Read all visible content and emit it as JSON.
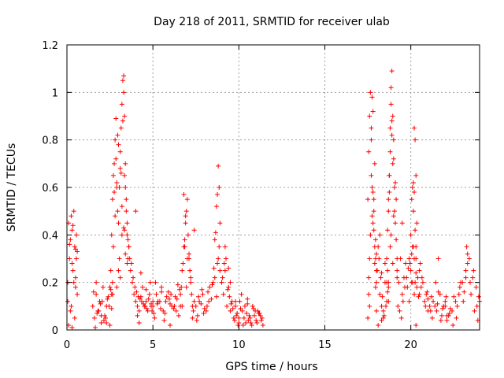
{
  "chart_data": {
    "type": "scatter",
    "title": "Day 218 of 2011, SRMTID for receiver ulab",
    "xlabel": "GPS time / hours",
    "ylabel": "SRMTID / TECUs",
    "xlim": [
      0,
      24
    ],
    "ylim": [
      0,
      1.2
    ],
    "x_ticks": [
      0,
      5,
      10,
      15,
      20
    ],
    "x_tick_labels": [
      "0",
      "5",
      "10",
      "15",
      "20"
    ],
    "y_ticks": [
      0,
      0.2,
      0.4,
      0.6,
      0.8,
      1.0,
      1.2
    ],
    "y_tick_labels": [
      "0",
      "0.2",
      "0.4",
      "0.6",
      "0.8",
      "1",
      "1.2"
    ],
    "grid": true,
    "marker": "+",
    "marker_color": "#ff0000",
    "series": [
      {
        "name": "SRMTID",
        "x": [
          0.05,
          0.1,
          0.15,
          0.2,
          0.25,
          0.3,
          0.35,
          0.4,
          0.45,
          0.5,
          0.55,
          0.6,
          0.1,
          0.2,
          0.3,
          0.4,
          0.5,
          0.6,
          0.15,
          0.35,
          0.45,
          0.55,
          0.05,
          0.25,
          0.5,
          0.3,
          1.5,
          1.6,
          1.7,
          1.8,
          1.9,
          2.0,
          2.1,
          2.2,
          2.3,
          2.4,
          2.5,
          2.6,
          1.55,
          1.75,
          1.95,
          2.15,
          2.35,
          2.55,
          1.65,
          1.85,
          2.05,
          2.25,
          2.45,
          2.65,
          1.7,
          2.0,
          2.3,
          2.5,
          2.55,
          2.6,
          2.65,
          2.7,
          2.75,
          2.8,
          2.85,
          2.9,
          2.95,
          3.0,
          3.05,
          3.1,
          3.15,
          3.2,
          3.25,
          3.3,
          3.35,
          3.4,
          3.45,
          3.5,
          3.55,
          3.6,
          2.7,
          2.8,
          2.9,
          3.0,
          3.1,
          3.2,
          3.3,
          3.4,
          3.5,
          2.75,
          2.95,
          3.15,
          3.35,
          3.55,
          2.65,
          3.05,
          3.25,
          3.45,
          3.3,
          3.35,
          3.2,
          2.9,
          3.0,
          3.1,
          3.4,
          3.5,
          2.85,
          2.6,
          3.6,
          3.7,
          3.8,
          3.9,
          4.0,
          4.1,
          4.2,
          4.3,
          4.4,
          4.5,
          4.6,
          4.7,
          4.8,
          4.9,
          5.0,
          3.65,
          3.85,
          4.05,
          4.25,
          4.45,
          4.65,
          4.85,
          5.05,
          3.75,
          3.95,
          4.15,
          4.35,
          4.55,
          4.75,
          4.95,
          4.0,
          4.3,
          4.6,
          4.9,
          4.1,
          4.2,
          5.0,
          5.2,
          5.4,
          5.6,
          5.8,
          6.0,
          6.2,
          6.4,
          6.6,
          5.1,
          5.3,
          5.5,
          5.7,
          5.9,
          6.1,
          6.3,
          6.5,
          5.15,
          5.45,
          5.75,
          6.05,
          6.35,
          6.55,
          5.25,
          5.65,
          5.95,
          6.25,
          6.45,
          5.5,
          6.0,
          6.6,
          6.7,
          6.8,
          6.9,
          7.0,
          7.1,
          7.2,
          7.3,
          7.4,
          6.65,
          6.75,
          6.85,
          6.95,
          7.05,
          7.15,
          7.25,
          7.35,
          6.8,
          6.85,
          6.9,
          7.0,
          7.2,
          7.3,
          6.7,
          7.1,
          7.4,
          6.95,
          7.5,
          7.7,
          7.9,
          8.1,
          8.3,
          8.5,
          8.7,
          8.9,
          7.6,
          7.8,
          8.0,
          8.2,
          8.4,
          8.6,
          8.8,
          7.55,
          7.85,
          8.15,
          8.45,
          8.75,
          7.65,
          7.95,
          8.25,
          8.55,
          8.85,
          8.65,
          8.7,
          8.75,
          8.8,
          8.85,
          8.9,
          9.0,
          8.6,
          9.0,
          9.1,
          9.2,
          9.3,
          9.4,
          9.5,
          9.6,
          9.7,
          9.8,
          9.9,
          10.0,
          9.05,
          9.25,
          9.45,
          9.65,
          9.85,
          9.15,
          9.35,
          9.55,
          9.75,
          9.95,
          9.2,
          9.5,
          9.8,
          9.4,
          10.0,
          10.2,
          10.4,
          10.6,
          10.8,
          11.0,
          11.2,
          11.4,
          10.1,
          10.3,
          10.5,
          10.7,
          10.9,
          11.1,
          11.3,
          10.05,
          10.25,
          10.45,
          10.65,
          10.85,
          11.05,
          11.25,
          10.15,
          10.55,
          10.95,
          11.35,
          10.35,
          10.75,
          11.15,
          10.5,
          17.5,
          17.55,
          17.6,
          17.65,
          17.7,
          17.75,
          17.8,
          17.85,
          17.9,
          17.95,
          18.0,
          17.5,
          17.6,
          17.7,
          17.8,
          17.9,
          18.0,
          17.55,
          17.65,
          17.75,
          17.85,
          17.95,
          17.6,
          17.7,
          17.8,
          17.9,
          17.55,
          17.75,
          17.85,
          17.95,
          18.0,
          18.1,
          18.2,
          18.3,
          18.4,
          18.5,
          18.6,
          18.7,
          18.05,
          18.15,
          18.25,
          18.35,
          18.45,
          18.55,
          18.65,
          18.1,
          18.3,
          18.5,
          18.7,
          18.2,
          18.4,
          18.6,
          18.0,
          18.3,
          18.6,
          18.65,
          18.7,
          18.75,
          18.8,
          18.85,
          18.9,
          18.95,
          19.0,
          19.05,
          19.1,
          19.15,
          19.2,
          18.7,
          18.8,
          18.9,
          19.0,
          19.1,
          18.65,
          18.75,
          18.85,
          18.95,
          19.05,
          18.8,
          18.9,
          19.0,
          18.75,
          18.85,
          18.95,
          19.15,
          18.7,
          19.2,
          19.2,
          19.3,
          19.4,
          19.5,
          19.6,
          19.7,
          19.8,
          19.9,
          20.0,
          20.1,
          20.2,
          20.3,
          20.4,
          20.5,
          19.25,
          19.45,
          19.65,
          19.85,
          20.05,
          20.25,
          20.45,
          19.35,
          19.55,
          19.75,
          19.95,
          20.15,
          20.35,
          19.5,
          19.9,
          20.3,
          20.0,
          20.05,
          20.1,
          20.15,
          20.2,
          20.25,
          20.3,
          20.35,
          20.1,
          20.2,
          20.3,
          20.15,
          20.25,
          20.05,
          20.2,
          20.3,
          20.5,
          20.7,
          20.9,
          21.1,
          21.3,
          21.5,
          21.7,
          21.9,
          22.1,
          20.6,
          20.8,
          21.0,
          21.2,
          21.4,
          21.6,
          21.8,
          22.0,
          20.55,
          20.85,
          21.15,
          21.45,
          21.75,
          22.05,
          20.65,
          20.95,
          21.25,
          21.55,
          21.85,
          21.0,
          21.6,
          22.0,
          22.2,
          22.4,
          22.6,
          22.8,
          23.0,
          23.2,
          23.4,
          23.6,
          23.8,
          24.0,
          22.1,
          22.3,
          22.5,
          22.7,
          22.9,
          23.1,
          23.3,
          23.5,
          23.7,
          23.9,
          22.25,
          22.65,
          23.05,
          23.45,
          23.85,
          22.45,
          22.85,
          23.25,
          23.65,
          23.95,
          23.2,
          23.3
        ],
        "y": [
          0.12,
          0.45,
          0.3,
          0.38,
          0.1,
          0.42,
          0.25,
          0.2,
          0.35,
          0.18,
          0.4,
          0.33,
          0.02,
          0.08,
          0.28,
          0.5,
          0.22,
          0.15,
          0.36,
          0.44,
          0.05,
          0.3,
          0.2,
          0.48,
          0.34,
          0.01,
          0.1,
          0.05,
          0.15,
          0.08,
          0.12,
          0.03,
          0.18,
          0.06,
          0.1,
          0.14,
          0.02,
          0.09,
          0.16,
          0.07,
          0.11,
          0.04,
          0.13,
          0.17,
          0.01,
          0.08,
          0.12,
          0.05,
          0.1,
          0.15,
          0.2,
          0.06,
          0.03,
          0.18,
          0.25,
          0.4,
          0.55,
          0.65,
          0.7,
          0.8,
          0.72,
          0.6,
          0.5,
          0.45,
          0.6,
          0.75,
          0.85,
          0.95,
          1.05,
          1.07,
          0.9,
          0.7,
          0.55,
          0.4,
          0.38,
          0.35,
          0.35,
          0.48,
          0.62,
          0.78,
          0.68,
          0.52,
          0.43,
          0.32,
          0.28,
          0.58,
          0.82,
          0.66,
          0.42,
          0.3,
          0.2,
          0.3,
          0.88,
          0.5,
          1.0,
          0.65,
          0.4,
          0.18,
          0.25,
          0.22,
          0.6,
          0.45,
          0.89,
          0.15,
          0.35,
          0.25,
          0.2,
          0.15,
          0.12,
          0.1,
          0.08,
          0.14,
          0.18,
          0.1,
          0.12,
          0.08,
          0.15,
          0.1,
          0.12,
          0.3,
          0.22,
          0.16,
          0.13,
          0.11,
          0.09,
          0.2,
          0.07,
          0.28,
          0.18,
          0.14,
          0.12,
          0.1,
          0.13,
          0.08,
          0.5,
          0.24,
          0.17,
          0.11,
          0.06,
          0.03,
          0.1,
          0.15,
          0.12,
          0.08,
          0.14,
          0.11,
          0.09,
          0.13,
          0.1,
          0.05,
          0.12,
          0.18,
          0.07,
          0.16,
          0.1,
          0.14,
          0.06,
          0.2,
          0.09,
          0.12,
          0.15,
          0.08,
          0.17,
          0.11,
          0.04,
          0.13,
          0.1,
          0.19,
          0.16,
          0.02,
          0.15,
          0.25,
          0.35,
          0.45,
          0.55,
          0.3,
          0.2,
          0.1,
          0.12,
          0.18,
          0.28,
          0.38,
          0.5,
          0.4,
          0.25,
          0.15,
          0.08,
          0.57,
          0.35,
          0.48,
          0.3,
          0.22,
          0.05,
          0.1,
          0.32,
          0.42,
          0.18,
          0.1,
          0.12,
          0.15,
          0.08,
          0.18,
          0.2,
          0.14,
          0.25,
          0.06,
          0.11,
          0.09,
          0.16,
          0.13,
          0.22,
          0.3,
          0.04,
          0.17,
          0.1,
          0.19,
          0.28,
          0.14,
          0.07,
          0.12,
          0.26,
          0.35,
          0.41,
          0.52,
          0.57,
          0.69,
          0.6,
          0.45,
          0.2,
          0.38,
          0.2,
          0.15,
          0.25,
          0.1,
          0.18,
          0.08,
          0.12,
          0.05,
          0.1,
          0.07,
          0.03,
          0.22,
          0.3,
          0.14,
          0.09,
          0.06,
          0.28,
          0.17,
          0.11,
          0.04,
          0.02,
          0.35,
          0.2,
          0.12,
          0.26,
          0.05,
          0.08,
          0.03,
          0.06,
          0.1,
          0.04,
          0.07,
          0.02,
          0.09,
          0.05,
          0.11,
          0.03,
          0.06,
          0.08,
          0.04,
          0.12,
          0.02,
          0.07,
          0.05,
          0.09,
          0.03,
          0.06,
          0.15,
          0.04,
          0.08,
          0.05,
          0.1,
          0.02,
          0.07,
          0.13,
          0.55,
          0.75,
          0.9,
          1.0,
          0.85,
          0.6,
          0.45,
          0.5,
          0.35,
          0.3,
          0.25,
          0.05,
          0.3,
          0.65,
          0.92,
          0.7,
          0.2,
          0.15,
          0.4,
          0.98,
          0.55,
          0.38,
          0.1,
          0.8,
          0.58,
          0.28,
          0.22,
          0.48,
          0.42,
          0.18,
          0.08,
          0.02,
          0.15,
          0.1,
          0.05,
          0.2,
          0.12,
          0.18,
          0.25,
          0.3,
          0.22,
          0.14,
          0.06,
          0.1,
          0.16,
          0.35,
          0.24,
          0.28,
          0.12,
          0.4,
          0.08,
          0.2,
          0.32,
          0.04,
          0.3,
          0.42,
          0.55,
          0.65,
          0.85,
          1.02,
          1.09,
          0.9,
          0.72,
          0.6,
          0.45,
          0.38,
          0.3,
          0.5,
          0.75,
          0.88,
          0.8,
          0.62,
          0.25,
          0.58,
          0.95,
          0.7,
          0.5,
          0.35,
          0.82,
          0.48,
          0.65,
          0.4,
          0.28,
          0.55,
          0.2,
          0.22,
          0.25,
          0.2,
          0.3,
          0.15,
          0.22,
          0.28,
          0.18,
          0.12,
          0.25,
          0.2,
          0.3,
          0.35,
          0.22,
          0.15,
          0.1,
          0.05,
          0.18,
          0.26,
          0.32,
          0.2,
          0.14,
          0.08,
          0.12,
          0.22,
          0.28,
          0.35,
          0.18,
          0.45,
          0.3,
          0.24,
          0.4,
          0.55,
          0.6,
          0.5,
          0.85,
          0.8,
          0.65,
          0.45,
          0.35,
          0.58,
          0.3,
          0.62,
          0.42,
          0.2,
          0.15,
          0.02,
          0.25,
          0.2,
          0.15,
          0.1,
          0.12,
          0.08,
          0.15,
          0.1,
          0.06,
          0.18,
          0.12,
          0.08,
          0.14,
          0.1,
          0.16,
          0.06,
          0.12,
          0.28,
          0.1,
          0.08,
          0.2,
          0.04,
          0.14,
          0.22,
          0.16,
          0.05,
          0.11,
          0.09,
          0.13,
          0.3,
          0.1,
          0.06,
          0.08,
          0.12,
          0.15,
          0.2,
          0.25,
          0.3,
          0.22,
          0.18,
          0.12,
          0.04,
          0.09,
          0.14,
          0.1,
          0.2,
          0.16,
          0.32,
          0.15,
          0.08,
          0.04,
          0.07,
          0.05,
          0.12,
          0.2,
          0.1,
          0.02,
          0.18,
          0.35,
          0.25,
          0.14,
          0.22,
          0.28
        ]
      }
    ]
  }
}
